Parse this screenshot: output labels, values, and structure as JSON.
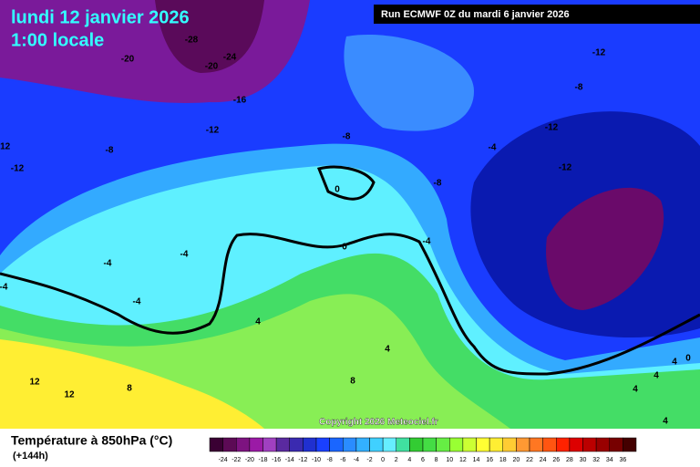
{
  "header": {
    "date": "lundi 12 janvier 2026",
    "time": "1:00 locale",
    "run": "Run ECMWF 0Z du mardi 6 janvier 2026"
  },
  "copyright": "Copyright 2026 Meteociel.fr",
  "legend": {
    "title": "Température à 850hPa (°C)",
    "lead": "(+144h)",
    "ticks": [
      -24,
      -22,
      -20,
      -18,
      -16,
      -14,
      -12,
      -10,
      -8,
      -6,
      -4,
      -2,
      0,
      2,
      4,
      6,
      8,
      10,
      12,
      14,
      16,
      18,
      20,
      22,
      24,
      26,
      28,
      30,
      32,
      34,
      36
    ],
    "colors": [
      "#3a0033",
      "#5c0a55",
      "#7d1380",
      "#9b1aa6",
      "#a040c0",
      "#5a2aa0",
      "#3a2ab0",
      "#2030d0",
      "#1a40ff",
      "#1a66ff",
      "#2a8cff",
      "#33b0ff",
      "#40d0ff",
      "#66eeff",
      "#40e0a0",
      "#33cc33",
      "#44dd44",
      "#66ee44",
      "#99ff33",
      "#ccff33",
      "#ffff33",
      "#ffee33",
      "#ffcc33",
      "#ff9933",
      "#ff7722",
      "#ff5511",
      "#ff2200",
      "#dd0000",
      "#bb0000",
      "#990000",
      "#770000",
      "#440000"
    ]
  },
  "contours": [
    "-28",
    "-20",
    "-24",
    "-20",
    "-16",
    "-12",
    "-12",
    "-12",
    "-8",
    "-12",
    "-8",
    "-8",
    "-12",
    "-4",
    "-8",
    "-12",
    "0",
    "0",
    "-4",
    "-4",
    "-4",
    "-4",
    "4",
    "4",
    "-4",
    "4",
    "12",
    "12",
    "8",
    "8",
    "4",
    "4",
    "0",
    "4"
  ]
}
